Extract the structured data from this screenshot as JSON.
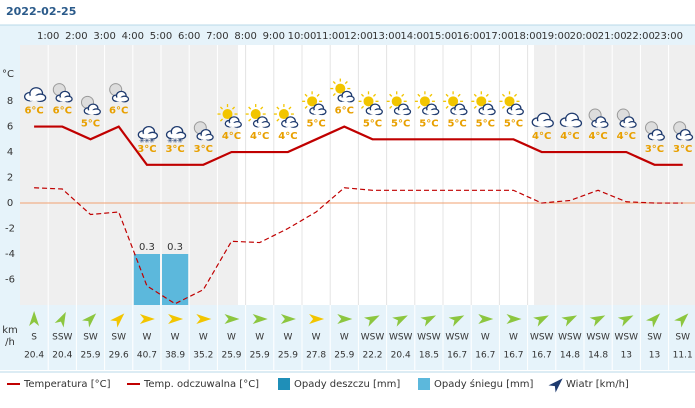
{
  "chart_data": {
    "type": "line",
    "title": "2022-02-25",
    "xlim": [
      0,
      24
    ],
    "xticks": [
      {
        "value": 1,
        "label": "1:00"
      },
      {
        "value": 2,
        "label": "2:00"
      },
      {
        "value": 3,
        "label": "3:00"
      },
      {
        "value": 4,
        "label": "4:00"
      },
      {
        "value": 5,
        "label": "5:00"
      },
      {
        "value": 6,
        "label": "6:00"
      },
      {
        "value": 7,
        "label": "7:00"
      },
      {
        "value": 8,
        "label": "8:00"
      },
      {
        "value": 9,
        "label": "9:00"
      },
      {
        "value": 10,
        "label": "10:00"
      },
      {
        "value": 11,
        "label": "11:00"
      },
      {
        "value": 12,
        "label": "12:00"
      },
      {
        "value": 13,
        "label": "13:00"
      },
      {
        "value": 14,
        "label": "14:00"
      },
      {
        "value": 15,
        "label": "15:00"
      },
      {
        "value": 16,
        "label": "16:00"
      },
      {
        "value": 17,
        "label": "17:00"
      },
      {
        "value": 18,
        "label": "18:00"
      },
      {
        "value": 19,
        "label": "19:00"
      },
      {
        "value": 20,
        "label": "20:00"
      },
      {
        "value": 21,
        "label": "21:00"
      },
      {
        "value": 22,
        "label": "22:00"
      },
      {
        "value": 23,
        "label": "23:00"
      }
    ],
    "x": [
      0.5,
      1.5,
      2.5,
      3.5,
      4.5,
      5.5,
      6.5,
      7.5,
      8.5,
      9.5,
      10.5,
      11.5,
      12.5,
      13.5,
      14.5,
      15.5,
      16.5,
      17.5,
      18.5,
      19.5,
      20.5,
      21.5,
      22.5,
      23.5
    ],
    "y_label": "°C",
    "ylim": [
      -8,
      12.4
    ],
    "yticks": [
      -6,
      -4,
      -2,
      0,
      2,
      4,
      6,
      8
    ],
    "series": [
      {
        "name": "Temperatura [°C]",
        "color": "#c00000",
        "values": [
          6,
          6,
          5,
          6,
          3,
          3,
          3,
          4,
          4,
          4,
          5,
          6,
          5,
          5,
          5,
          5,
          5,
          5,
          4,
          4,
          4,
          4,
          3,
          3
        ],
        "value_labels": [
          "6°C",
          "6°C",
          "5°C",
          "6°C",
          "3°C",
          "3°C",
          "3°C",
          "4°C",
          "4°C",
          "4°C",
          "5°C",
          "6°C",
          "5°C",
          "5°C",
          "5°C",
          "5°C",
          "5°C",
          "5°C",
          "4°C",
          "4°C",
          "4°C",
          "4°C",
          "3°C",
          "3°C"
        ]
      },
      {
        "name": "Temp. odczuwalna [°C]",
        "color": "#c00000",
        "values": [
          1.2,
          1.1,
          -0.9,
          -0.7,
          -6.5,
          -7.9,
          -6.8,
          -3.0,
          -3.1,
          -2.0,
          -0.7,
          1.2,
          1.0,
          1.0,
          1.0,
          1.0,
          1.0,
          1.0,
          0,
          0.2,
          1.0,
          0.1,
          0,
          0
        ]
      },
      {
        "name": "Opady deszczu [mm]",
        "color": "#1f8fb8",
        "values": [
          0,
          0,
          0,
          0,
          0,
          0,
          0,
          0,
          0,
          0,
          0,
          0,
          0,
          0,
          0,
          0,
          0,
          0,
          0,
          0,
          0,
          0,
          0,
          0
        ]
      },
      {
        "name": "Opady śniegu [mm]",
        "color": "#5cb8dc",
        "values": [
          0,
          0,
          0,
          0,
          0.3,
          0.3,
          0,
          0,
          0,
          0,
          0,
          0,
          0,
          0,
          0,
          0,
          0,
          0,
          0,
          0,
          0,
          0,
          0,
          0
        ]
      }
    ],
    "wind": {
      "name": "Wiatr [km/h]",
      "unit_label": [
        "km",
        "/h"
      ],
      "directions": [
        "S",
        "SSW",
        "SW",
        "SW",
        "W",
        "W",
        "W",
        "W",
        "W",
        "W",
        "W",
        "W",
        "WSW",
        "WSW",
        "WSW",
        "WSW",
        "W",
        "W",
        "WSW",
        "WSW",
        "WSW",
        "WSW",
        "SW",
        "SW"
      ],
      "values": [
        20.4,
        20.4,
        25.9,
        29.6,
        40.7,
        38.9,
        35.2,
        25.9,
        25.9,
        25.9,
        27.8,
        25.9,
        22.2,
        20.4,
        18.5,
        16.7,
        16.7,
        16.7,
        16.7,
        14.8,
        14.8,
        13,
        13,
        11.1
      ],
      "colors": [
        "#8cc63f",
        "#8cc63f",
        "#8cc63f",
        "#f2c500",
        "#f2c500",
        "#f2c500",
        "#f2c500",
        "#8cc63f",
        "#8cc63f",
        "#8cc63f",
        "#f2c500",
        "#8cc63f",
        "#8cc63f",
        "#8cc63f",
        "#8cc63f",
        "#8cc63f",
        "#8cc63f",
        "#8cc63f",
        "#8cc63f",
        "#8cc63f",
        "#8cc63f",
        "#8cc63f",
        "#8cc63f",
        "#8cc63f"
      ]
    }
  }
}
